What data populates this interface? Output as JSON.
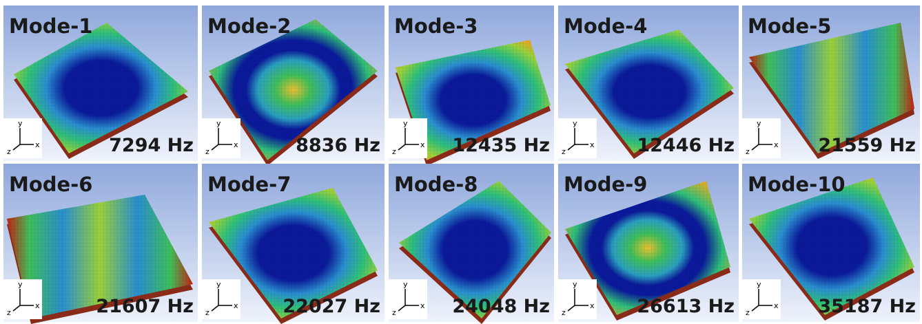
{
  "panels": [
    {
      "label": "Mode-1",
      "frequency": "7294 Hz"
    },
    {
      "label": "Mode-2",
      "frequency": "8836 Hz"
    },
    {
      "label": "Mode-3",
      "frequency": "12435 Hz"
    },
    {
      "label": "Mode-4",
      "frequency": "12446 Hz"
    },
    {
      "label": "Mode-5",
      "frequency": "21559 Hz"
    },
    {
      "label": "Mode-6",
      "frequency": "21607 Hz"
    },
    {
      "label": "Mode-7",
      "frequency": "22027 Hz"
    },
    {
      "label": "Mode-8",
      "frequency": "24048 Hz"
    },
    {
      "label": "Mode-9",
      "frequency": "26613 Hz"
    },
    {
      "label": "Mode-10",
      "frequency": "35187 Hz"
    }
  ],
  "triad": {
    "y": "y",
    "x": "x",
    "z": "z"
  }
}
